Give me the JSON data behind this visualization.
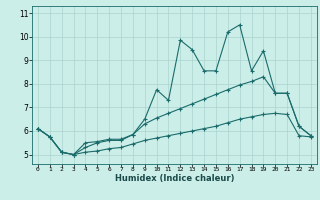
{
  "xlabel": "Humidex (Indice chaleur)",
  "bg_color": "#cceee8",
  "grid_color": "#aad4ce",
  "line_color": "#1a6b6b",
  "xlim": [
    -0.5,
    23.5
  ],
  "ylim": [
    4.6,
    11.3
  ],
  "xticks": [
    0,
    1,
    2,
    3,
    4,
    5,
    6,
    7,
    8,
    9,
    10,
    11,
    12,
    13,
    14,
    15,
    16,
    17,
    18,
    19,
    20,
    21,
    22,
    23
  ],
  "yticks": [
    5,
    6,
    7,
    8,
    9,
    10,
    11
  ],
  "line1_x": [
    0,
    1,
    2,
    3,
    4,
    5,
    6,
    7,
    8,
    9,
    10,
    11,
    12,
    13,
    14,
    15,
    16,
    17,
    18,
    19,
    20,
    21,
    22,
    23
  ],
  "line1_y": [
    6.1,
    5.75,
    5.1,
    5.0,
    5.5,
    5.55,
    5.65,
    5.65,
    5.85,
    6.5,
    7.75,
    7.3,
    9.85,
    9.45,
    8.55,
    8.55,
    10.2,
    10.5,
    8.55,
    9.4,
    7.6,
    7.6,
    6.2,
    5.8
  ],
  "line2_x": [
    0,
    1,
    2,
    3,
    4,
    5,
    6,
    7,
    8,
    9,
    10,
    11,
    12,
    13,
    14,
    15,
    16,
    17,
    18,
    19,
    20,
    21,
    22,
    23
  ],
  "line2_y": [
    6.1,
    5.75,
    5.1,
    5.0,
    5.3,
    5.5,
    5.6,
    5.6,
    5.85,
    6.3,
    6.55,
    6.75,
    6.95,
    7.15,
    7.35,
    7.55,
    7.75,
    7.95,
    8.1,
    8.3,
    7.6,
    7.6,
    6.2,
    5.8
  ],
  "line3_x": [
    0,
    1,
    2,
    3,
    4,
    5,
    6,
    7,
    8,
    9,
    10,
    11,
    12,
    13,
    14,
    15,
    16,
    17,
    18,
    19,
    20,
    21,
    22,
    23
  ],
  "line3_y": [
    6.1,
    5.75,
    5.1,
    5.0,
    5.1,
    5.15,
    5.25,
    5.3,
    5.45,
    5.6,
    5.7,
    5.8,
    5.9,
    6.0,
    6.1,
    6.2,
    6.35,
    6.5,
    6.6,
    6.7,
    6.75,
    6.7,
    5.8,
    5.75
  ]
}
